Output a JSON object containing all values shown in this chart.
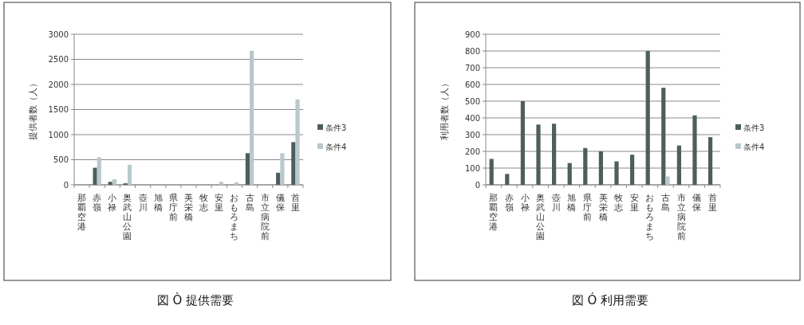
{
  "chart_data": [
    {
      "type": "bar",
      "title": "図 Ò 提供需要",
      "ylabel": "提供者数（人）",
      "categories": [
        "那覇空港",
        "赤嶺",
        "小禄",
        "奥武山公園",
        "壺川",
        "旭橋",
        "県庁前",
        "美栄橋",
        "牧志",
        "安里",
        "おもろまち",
        "古島",
        "市立病院前",
        "儀保",
        "首里"
      ],
      "series": [
        {
          "name": "条件3",
          "color": "#4d5e5e",
          "values": [
            0,
            340,
            60,
            30,
            0,
            0,
            0,
            0,
            0,
            0,
            0,
            630,
            0,
            240,
            850
          ]
        },
        {
          "name": "条件4",
          "color": "#b8c8cc",
          "values": [
            0,
            550,
            110,
            400,
            0,
            0,
            0,
            0,
            0,
            60,
            50,
            2670,
            0,
            630,
            1700
          ]
        }
      ],
      "ylim": [
        0,
        3000
      ],
      "yticks": [
        0,
        500,
        1000,
        1500,
        2000,
        2500,
        3000
      ],
      "grid": "y",
      "legend": "right"
    },
    {
      "type": "bar",
      "title": "図 Ó 利用需要",
      "ylabel": "利用者数（人）",
      "categories": [
        "那覇空港",
        "赤嶺",
        "小禄",
        "奥武山公園",
        "壺川",
        "旭橋",
        "県庁前",
        "美栄橋",
        "牧志",
        "安里",
        "おもろまち",
        "古島",
        "市立病院前",
        "儀保",
        "首里"
      ],
      "series": [
        {
          "name": "条件3",
          "color": "#4d5e5e",
          "values": [
            155,
            65,
            500,
            360,
            365,
            130,
            220,
            200,
            140,
            180,
            800,
            580,
            235,
            415,
            285
          ]
        },
        {
          "name": "条件4",
          "color": "#b8c8cc",
          "values": [
            0,
            0,
            0,
            0,
            0,
            0,
            0,
            0,
            0,
            0,
            0,
            50,
            0,
            0,
            0
          ]
        }
      ],
      "ylim": [
        0,
        900
      ],
      "yticks": [
        0,
        100,
        200,
        300,
        400,
        500,
        600,
        700,
        800,
        900
      ],
      "grid": "y",
      "legend": "right"
    }
  ]
}
